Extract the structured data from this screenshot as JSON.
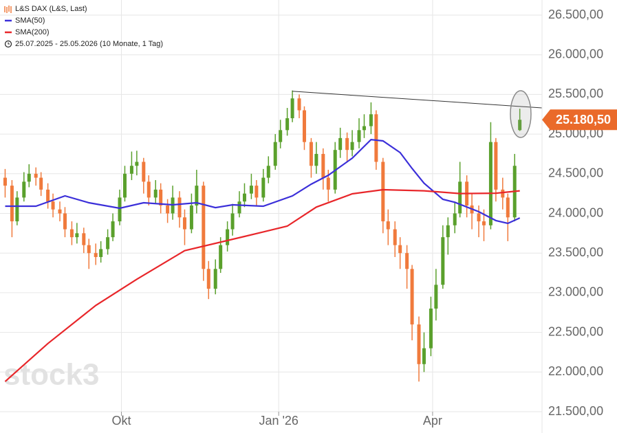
{
  "chart_data": {
    "type": "candlestick",
    "xlim": [
      "2025-07-22",
      "2026-06-04"
    ],
    "ylim": [
      21500,
      26500
    ],
    "yticks": [
      {
        "value": 21500,
        "label": "21.500,00"
      },
      {
        "value": 22000,
        "label": "22.000,00"
      },
      {
        "value": 22500,
        "label": "22.500,00"
      },
      {
        "value": 23000,
        "label": "23.000,00"
      },
      {
        "value": 23500,
        "label": "23.500,00"
      },
      {
        "value": 24000,
        "label": "24.000,00"
      },
      {
        "value": 24500,
        "label": "24.500,00"
      },
      {
        "value": 25000,
        "label": "25.000,00"
      },
      {
        "value": 25500,
        "label": "25.500,00"
      },
      {
        "value": 26000,
        "label": "26.000,00"
      },
      {
        "value": 26500,
        "label": "26.500,00"
      }
    ],
    "xticks": [
      {
        "value": "2025-10-01",
        "label": "Okt"
      },
      {
        "value": "2026-01-01",
        "label": "Jan '26"
      },
      {
        "value": "2026-04-01",
        "label": "Apr"
      }
    ],
    "grid": true,
    "period": "25.07.2025 - 25.05.2026 (10 Monate, 1 Tag)",
    "watermark": "stock3",
    "last_price": {
      "value": 25180.5,
      "label": "25.180,50",
      "color": "#ea6a2a"
    },
    "trendline": {
      "x": [
        "2026-01-09",
        "2026-06-04"
      ],
      "values": [
        25540,
        25330
      ],
      "color": "#333333"
    },
    "series": [
      {
        "name": "L&S DAX (L&S, Last)",
        "kind": "ohlc",
        "color": "#f07a3c",
        "up_color": "#5aa02c",
        "down_color": "#f07a3c",
        "x": [
          "2025-07-25",
          "2025-07-29",
          "2025-08-01",
          "2025-08-05",
          "2025-08-08",
          "2025-08-12",
          "2025-08-15",
          "2025-08-19",
          "2025-08-22",
          "2025-08-26",
          "2025-08-29",
          "2025-09-02",
          "2025-09-05",
          "2025-09-09",
          "2025-09-12",
          "2025-09-16",
          "2025-09-19",
          "2025-09-23",
          "2025-09-26",
          "2025-09-30",
          "2025-10-03",
          "2025-10-07",
          "2025-10-10",
          "2025-10-14",
          "2025-10-17",
          "2025-10-21",
          "2025-10-24",
          "2025-10-28",
          "2025-10-31",
          "2025-11-04",
          "2025-11-07",
          "2025-11-11",
          "2025-11-14",
          "2025-11-18",
          "2025-11-21",
          "2025-11-25",
          "2025-11-28",
          "2025-12-02",
          "2025-12-05",
          "2025-12-09",
          "2025-12-12",
          "2025-12-16",
          "2025-12-19",
          "2025-12-23",
          "2025-12-26",
          "2025-12-30",
          "2026-01-02",
          "2026-01-06",
          "2026-01-09",
          "2026-01-13",
          "2026-01-16",
          "2026-01-20",
          "2026-01-23",
          "2026-01-27",
          "2026-01-30",
          "2026-02-03",
          "2026-02-06",
          "2026-02-10",
          "2026-02-13",
          "2026-02-17",
          "2026-02-20",
          "2026-02-24",
          "2026-02-27",
          "2026-03-03",
          "2026-03-06",
          "2026-03-10",
          "2026-03-13",
          "2026-03-17",
          "2026-03-20",
          "2026-03-24",
          "2026-03-27",
          "2026-03-31",
          "2026-04-03",
          "2026-04-07",
          "2026-04-10",
          "2026-04-14",
          "2026-04-17",
          "2026-04-21",
          "2026-04-24",
          "2026-04-28",
          "2026-05-01",
          "2026-05-05",
          "2026-05-08",
          "2026-05-12",
          "2026-05-15",
          "2026-05-19",
          "2026-05-22"
        ],
        "open": [
          24450,
          24350,
          23900,
          24200,
          24400,
          24500,
          24450,
          24300,
          24150,
          24050,
          24000,
          23800,
          23700,
          23750,
          23600,
          23500,
          23450,
          23550,
          23700,
          23900,
          24200,
          24500,
          24600,
          24650,
          24400,
          24200,
          24300,
          24100,
          24000,
          24200,
          23950,
          23800,
          24100,
          24350,
          23300,
          23050,
          23300,
          23600,
          23800,
          24000,
          24150,
          24250,
          24350,
          24200,
          24450,
          24600,
          24900,
          25050,
          25200,
          25450,
          25300,
          24900,
          24600,
          24750,
          24450,
          24300,
          24800,
          24950,
          24800,
          24900,
          25050,
          25100,
          25250,
          24650,
          23900,
          23800,
          23600,
          23500,
          23300,
          22600,
          22100,
          22300,
          22800,
          23100,
          23700,
          23850,
          24000,
          24400,
          24100,
          24000,
          23900,
          23850,
          24900,
          24300,
          24200,
          23950,
          25050
        ],
        "high": [
          24560,
          24420,
          24280,
          24520,
          24620,
          24580,
          24520,
          24380,
          24250,
          24150,
          24080,
          23900,
          23880,
          23820,
          23680,
          23620,
          23650,
          23800,
          24000,
          24300,
          24600,
          24780,
          24790,
          24700,
          24480,
          24420,
          24380,
          24180,
          24350,
          24280,
          24050,
          24250,
          24550,
          24400,
          23400,
          23420,
          23700,
          23900,
          24120,
          24280,
          24380,
          24500,
          24420,
          24560,
          24720,
          25000,
          25180,
          25330,
          25550,
          25500,
          25350,
          24950,
          24900,
          24820,
          24550,
          24900,
          25080,
          25020,
          25050,
          25200,
          25250,
          25400,
          25300,
          24700,
          24050,
          23900,
          23700,
          23600,
          23350,
          22700,
          22500,
          22950,
          23300,
          23850,
          23950,
          24150,
          24650,
          24480,
          24250,
          24100,
          24050,
          25150,
          24950,
          24450,
          24250,
          24750,
          25320
        ],
        "low": [
          24200,
          23700,
          23850,
          24150,
          24330,
          24350,
          24220,
          24060,
          23950,
          23900,
          23700,
          23600,
          23620,
          23500,
          23300,
          23350,
          23380,
          23480,
          23650,
          23850,
          24150,
          24420,
          24480,
          24250,
          24100,
          24120,
          24000,
          23880,
          23920,
          23820,
          23600,
          23750,
          24000,
          23150,
          22920,
          22980,
          23250,
          23520,
          23720,
          23950,
          24080,
          24180,
          24100,
          24150,
          24380,
          24550,
          24820,
          24980,
          25150,
          25200,
          24800,
          24450,
          24500,
          24300,
          24150,
          24250,
          24700,
          24650,
          24720,
          24820,
          24950,
          25000,
          24550,
          23750,
          23600,
          23450,
          23300,
          23050,
          22400,
          21880,
          22000,
          22200,
          22650,
          23050,
          23480,
          23750,
          23950,
          23950,
          23800,
          23700,
          23650,
          23800,
          24150,
          24050,
          23650,
          23900,
          25040
        ],
        "close": [
          24350,
          23900,
          24200,
          24400,
          24500,
          24450,
          24300,
          24150,
          24050,
          24000,
          23800,
          23700,
          23750,
          23600,
          23500,
          23450,
          23550,
          23700,
          23900,
          24200,
          24500,
          24600,
          24650,
          24400,
          24200,
          24300,
          24100,
          24000,
          24200,
          23950,
          23800,
          24100,
          24350,
          23300,
          23050,
          23300,
          23600,
          23800,
          24000,
          24150,
          24250,
          24350,
          24200,
          24450,
          24600,
          24900,
          25050,
          25200,
          25450,
          25300,
          24900,
          24600,
          24750,
          24450,
          24300,
          24800,
          24950,
          24800,
          24900,
          25050,
          25100,
          25250,
          24650,
          23900,
          23800,
          23600,
          23500,
          23300,
          22600,
          22100,
          22300,
          22800,
          23100,
          23700,
          23850,
          24000,
          24400,
          24100,
          24000,
          23900,
          23850,
          24900,
          24300,
          24200,
          23950,
          24600,
          25180.5
        ]
      },
      {
        "name": "SMA(50)",
        "kind": "line",
        "color": "#3b2fd9",
        "x": [
          "2025-07-25",
          "2025-08-12",
          "2025-08-29",
          "2025-09-12",
          "2025-09-30",
          "2025-10-14",
          "2025-10-31",
          "2025-11-14",
          "2025-11-25",
          "2025-12-05",
          "2025-12-23",
          "2026-01-09",
          "2026-01-20",
          "2026-01-30",
          "2026-02-13",
          "2026-02-24",
          "2026-03-03",
          "2026-03-13",
          "2026-03-20",
          "2026-03-27",
          "2026-04-07",
          "2026-04-14",
          "2026-04-28",
          "2026-05-08",
          "2026-05-15",
          "2026-05-22"
        ],
        "values": [
          24091,
          24091,
          24221,
          24134,
          24065,
          24134,
          24108,
          24134,
          24073,
          24108,
          24091,
          24221,
          24368,
          24481,
          24697,
          24931,
          24914,
          24767,
          24567,
          24380,
          24178,
          24140,
          24022,
          23910,
          23874,
          23943
        ]
      },
      {
        "name": "SMA(200)",
        "kind": "line",
        "color": "#e8262a",
        "x": [
          "2025-07-25",
          "2025-08-19",
          "2025-09-16",
          "2025-10-10",
          "2025-11-07",
          "2025-12-12",
          "2026-01-06",
          "2026-01-23",
          "2026-02-13",
          "2026-03-03",
          "2026-03-27",
          "2026-04-17",
          "2026-05-08",
          "2026-05-22"
        ],
        "values": [
          21880,
          22360,
          22840,
          23170,
          23530,
          23710,
          23840,
          24080,
          24247,
          24299,
          24285,
          24250,
          24255,
          24285
        ]
      }
    ]
  }
}
